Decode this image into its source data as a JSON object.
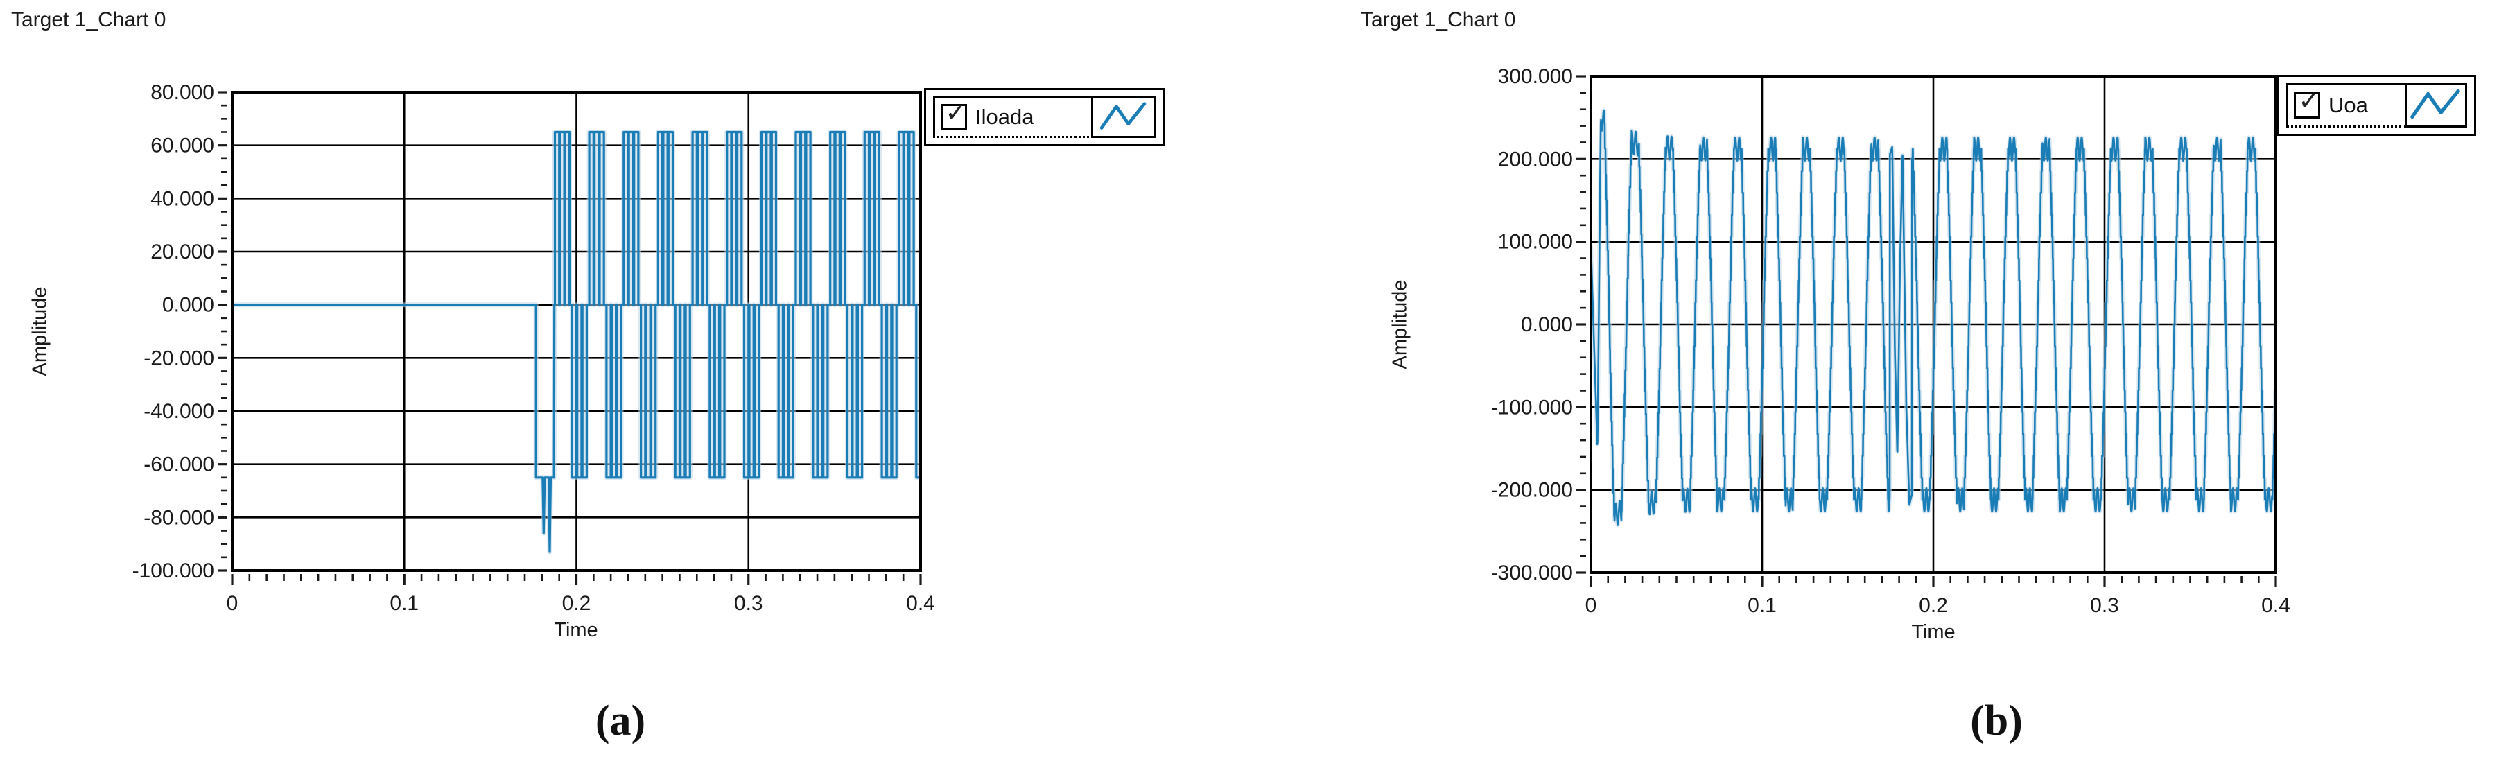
{
  "colors": {
    "plot_line": "#1b7db6",
    "plot_line_halo": "#b8d4e8",
    "grid": "#000000",
    "text": "#1a1a1a",
    "plot_bg": "#ffffff",
    "page_bg": "#ffffff"
  },
  "captions": [
    "(a)",
    "(b)"
  ],
  "chart_data": [
    {
      "type": "line",
      "title": "Target 1_Chart 0",
      "xlabel": "Time",
      "ylabel": "Amplitude",
      "legend": {
        "label": "Iloada",
        "checked": true,
        "checkmark": "✓",
        "position": "top-right"
      },
      "xlim": [
        0,
        0.4
      ],
      "ylim": [
        -100,
        80
      ],
      "x_tick_values": [
        0,
        0.1,
        0.2,
        0.3,
        0.4
      ],
      "x_tick_labels": [
        "0",
        "0.1",
        "0.2",
        "0.3",
        "0.4"
      ],
      "x_minor_step": 0.01,
      "y_tick_values": [
        80,
        60,
        40,
        20,
        0,
        -20,
        -40,
        -60,
        -80,
        -100
      ],
      "y_tick_labels": [
        "80.000",
        "60.000",
        "40.000",
        "20.000",
        "0.000",
        "-20.000",
        "-40.000",
        "-60.000",
        "-80.000",
        "-100.000"
      ],
      "y_minor_step": 5,
      "grid": true,
      "series": [
        {
          "name": "Iloada",
          "waveform": {
            "kind": "pwm_load_current",
            "flat_value": 0,
            "flat_until": 0.1765,
            "initial_surge": {
              "start": 0.1765,
              "end": 0.187,
              "level": -65,
              "spikes": [
                {
                  "t": 0.181,
                  "v": -86
                },
                {
                  "t": 0.1845,
                  "v": -93
                }
              ]
            },
            "periodic_start": 0.1875,
            "period": 0.02,
            "pulse_amplitude": 65,
            "pulses_per_half": 3,
            "pulse_on": 0.0025,
            "pulse_gap": 0.0005,
            "end": 0.4
          }
        }
      ]
    },
    {
      "type": "line",
      "title": "Target 1_Chart 0",
      "xlabel": "Time",
      "ylabel": "Amplitude",
      "legend": {
        "label": "Uoa",
        "checked": true,
        "checkmark": "✓",
        "position": "top-right"
      },
      "xlim": [
        0,
        0.4
      ],
      "ylim": [
        -300,
        300
      ],
      "x_tick_values": [
        0,
        0.1,
        0.2,
        0.3,
        0.4
      ],
      "x_tick_labels": [
        "0",
        "0.1",
        "0.2",
        "0.3",
        "0.4"
      ],
      "x_minor_step": 0.01,
      "y_tick_values": [
        300,
        200,
        100,
        0,
        -100,
        -200,
        -300
      ],
      "y_tick_labels": [
        "300.000",
        "200.000",
        "100.000",
        "0.000",
        "-100.000",
        "-200.000",
        "-300.000"
      ],
      "y_minor_step": 20,
      "grid": true,
      "series": [
        {
          "name": "Uoa",
          "waveform": {
            "kind": "stepped_sine_voltage",
            "fundamental_hz": 50,
            "steady_amplitude": 212,
            "first_peak": 250,
            "start_value": 95,
            "start_dip": -150,
            "t_dip": 0.0038,
            "t_first_peak": 0.0058,
            "levels": 8,
            "clip_gain": 1.25,
            "peak_ripple": 14,
            "ripple_hz": 430,
            "phase_shift": 0.0008,
            "glitch": [
              [
                0.1745,
                205
              ],
              [
                0.176,
                215
              ],
              [
                0.1775,
                -30
              ],
              [
                0.179,
                -160
              ],
              [
                0.1805,
                70
              ],
              [
                0.182,
                210
              ],
              [
                0.1842,
                -100
              ],
              [
                0.186,
                -218
              ],
              [
                0.1875,
                -205
              ]
            ],
            "end": 0.4
          }
        }
      ]
    }
  ]
}
